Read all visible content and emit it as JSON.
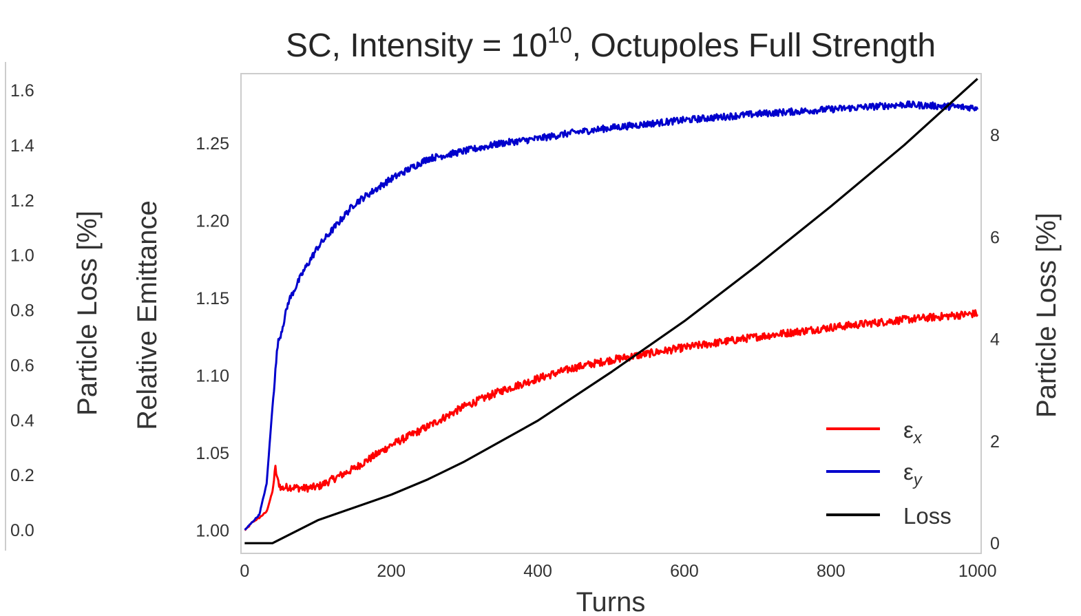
{
  "chart_data": {
    "type": "line",
    "title": {
      "prefix": "SC, Intensity = ",
      "base": "10",
      "exponent": "10",
      "suffix": ", Octupoles Full Strength"
    },
    "xlabel": "Turns",
    "ylabel_left": "Relative Emittance",
    "ylabel_right": "Particle Loss [%]",
    "xlim": [
      -5,
      1005
    ],
    "ylim_left": [
      0.985,
      1.295
    ],
    "ylim_right": [
      -0.2,
      9.2
    ],
    "xticks": [
      "0",
      "200",
      "400",
      "600",
      "800",
      "1000"
    ],
    "yticks_left": [
      "1.00",
      "1.05",
      "1.10",
      "1.15",
      "1.20",
      "1.25"
    ],
    "yticks_right": [
      "0",
      "2",
      "4",
      "6",
      "8"
    ],
    "grid": false,
    "legend_position": "lower-right",
    "series": [
      {
        "name": "εx",
        "name_base": "ε",
        "name_sub": "x",
        "axis": "left",
        "color": "#ff0000",
        "x": [
          0,
          5,
          10,
          20,
          30,
          38,
          42,
          45,
          50,
          60,
          80,
          100,
          150,
          200,
          250,
          300,
          350,
          400,
          450,
          500,
          600,
          700,
          800,
          900,
          950,
          1000
        ],
        "y": [
          1.0,
          1.002,
          1.005,
          1.008,
          1.012,
          1.025,
          1.04,
          1.032,
          1.027,
          1.028,
          1.027,
          1.028,
          1.04,
          1.055,
          1.067,
          1.08,
          1.09,
          1.098,
          1.105,
          1.11,
          1.118,
          1.125,
          1.131,
          1.136,
          1.138,
          1.14
        ],
        "noise": 0.0025
      },
      {
        "name": "εy",
        "name_base": "ε",
        "name_sub": "y",
        "axis": "left",
        "color": "#0000cc",
        "x": [
          0,
          10,
          20,
          30,
          38,
          45,
          50,
          60,
          80,
          100,
          150,
          200,
          250,
          300,
          350,
          400,
          450,
          500,
          600,
          700,
          800,
          900,
          950,
          1000
        ],
        "y": [
          1.0,
          1.005,
          1.01,
          1.03,
          1.08,
          1.12,
          1.128,
          1.148,
          1.167,
          1.183,
          1.211,
          1.227,
          1.24,
          1.245,
          1.25,
          1.253,
          1.257,
          1.26,
          1.265,
          1.269,
          1.272,
          1.275,
          1.274,
          1.273
        ],
        "noise": 0.0022
      },
      {
        "name": "Loss",
        "axis": "right",
        "color": "#000000",
        "x": [
          0,
          38,
          100,
          200,
          250,
          300,
          400,
          500,
          600,
          700,
          800,
          900,
          1000
        ],
        "y": [
          0,
          0,
          0.45,
          0.95,
          1.25,
          1.6,
          2.4,
          3.35,
          4.35,
          5.45,
          6.6,
          7.8,
          9.1
        ],
        "noise": 0
      }
    ],
    "ghost_axis": {
      "ylabel": "Particle Loss [%]",
      "ylim": [
        -0.05,
        1.7
      ],
      "yticks": [
        "0.0",
        "0.2",
        "0.4",
        "0.6",
        "0.8",
        "1.0",
        "1.2",
        "1.4",
        "1.6"
      ]
    }
  }
}
